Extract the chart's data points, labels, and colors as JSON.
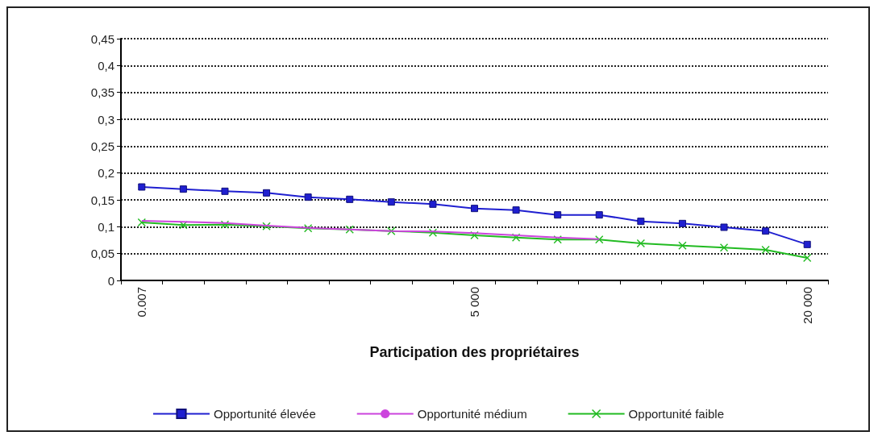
{
  "chart_data": {
    "type": "line",
    "xlabel": "Participation des propriétaires",
    "categories": [
      "0.007",
      null,
      null,
      null,
      null,
      null,
      null,
      null,
      "5 000",
      null,
      null,
      null,
      null,
      null,
      null,
      null,
      "20 000"
    ],
    "series": [
      {
        "name": "Opportunité élevée",
        "color": "#1f1fd0",
        "marker": "square",
        "values": [
          0.174,
          0.17,
          0.166,
          0.163,
          0.155,
          0.151,
          0.146,
          0.142,
          0.134,
          0.131,
          0.122,
          0.122,
          0.11,
          0.106,
          0.099,
          0.092,
          0.067
        ]
      },
      {
        "name": "Opportunité médium",
        "color": "#cc44dd",
        "marker": "none",
        "values": [
          0.111,
          0.109,
          0.107,
          0.102,
          0.098,
          0.095,
          0.092,
          0.091,
          0.088,
          0.084,
          0.08,
          0.077,
          null,
          null,
          null,
          null,
          null
        ]
      },
      {
        "name": "Opportunité faible",
        "color": "#22bb22",
        "marker": "cross",
        "values": [
          0.108,
          0.103,
          0.104,
          0.101,
          0.097,
          0.095,
          0.092,
          0.089,
          0.084,
          0.08,
          0.076,
          0.076,
          0.069,
          0.065,
          0.061,
          0.057,
          0.042
        ]
      }
    ],
    "ylim": [
      0,
      0.45
    ],
    "yticks": [
      {
        "value": 0,
        "label": "0"
      },
      {
        "value": 0.05,
        "label": "0,05"
      },
      {
        "value": 0.1,
        "label": "0,1"
      },
      {
        "value": 0.15,
        "label": "0,15"
      },
      {
        "value": 0.2,
        "label": "0,2"
      },
      {
        "value": 0.25,
        "label": "0,25"
      },
      {
        "value": 0.3,
        "label": "0,3"
      },
      {
        "value": 0.35,
        "label": "0,35"
      },
      {
        "value": 0.4,
        "label": "0,4"
      },
      {
        "value": 0.45,
        "label": "0,45"
      }
    ],
    "grid": "y",
    "legend": "bottom",
    "line_style": "solid"
  }
}
